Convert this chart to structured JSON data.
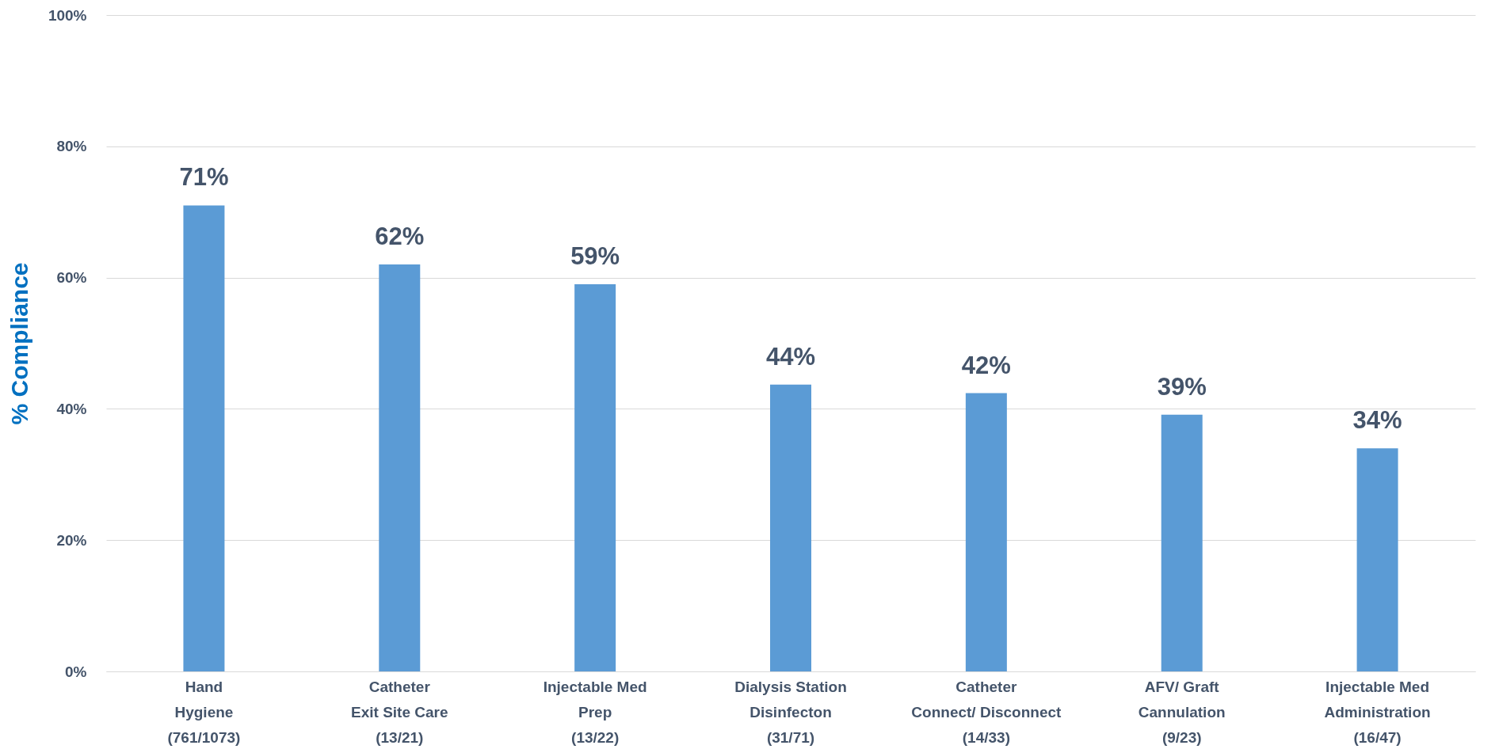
{
  "chart_data": {
    "type": "bar",
    "ylabel": "% Compliance",
    "categories": [
      "Hand\nHygiene\n(761/1073)",
      "Catheter\nExit Site Care\n(13/21)",
      "Injectable Med\nPrep\n(13/22)",
      "Dialysis Station\nDisinfecton\n(31/71)",
      "Catheter\nConnect/ Disconnect\n(14/33)",
      "AFV/ Graft\nCannulation\n(9/23)",
      "Injectable Med\nAdministration\n(16/47)"
    ],
    "values": [
      71,
      62,
      59,
      43.7,
      42.4,
      39.1,
      34
    ],
    "value_labels": [
      "71%",
      "62%",
      "59%",
      "44%",
      "42%",
      "39%",
      "34%"
    ],
    "color": "#5b9bd5",
    "ylim": [
      0,
      100
    ],
    "yticks": [
      {
        "value": 0,
        "label": "0%"
      },
      {
        "value": 20,
        "label": "20%"
      },
      {
        "value": 40,
        "label": "40%"
      },
      {
        "value": 60,
        "label": "60%"
      },
      {
        "value": 80,
        "label": "80%"
      },
      {
        "value": 100,
        "label": "100%"
      }
    ],
    "grid": "y"
  }
}
